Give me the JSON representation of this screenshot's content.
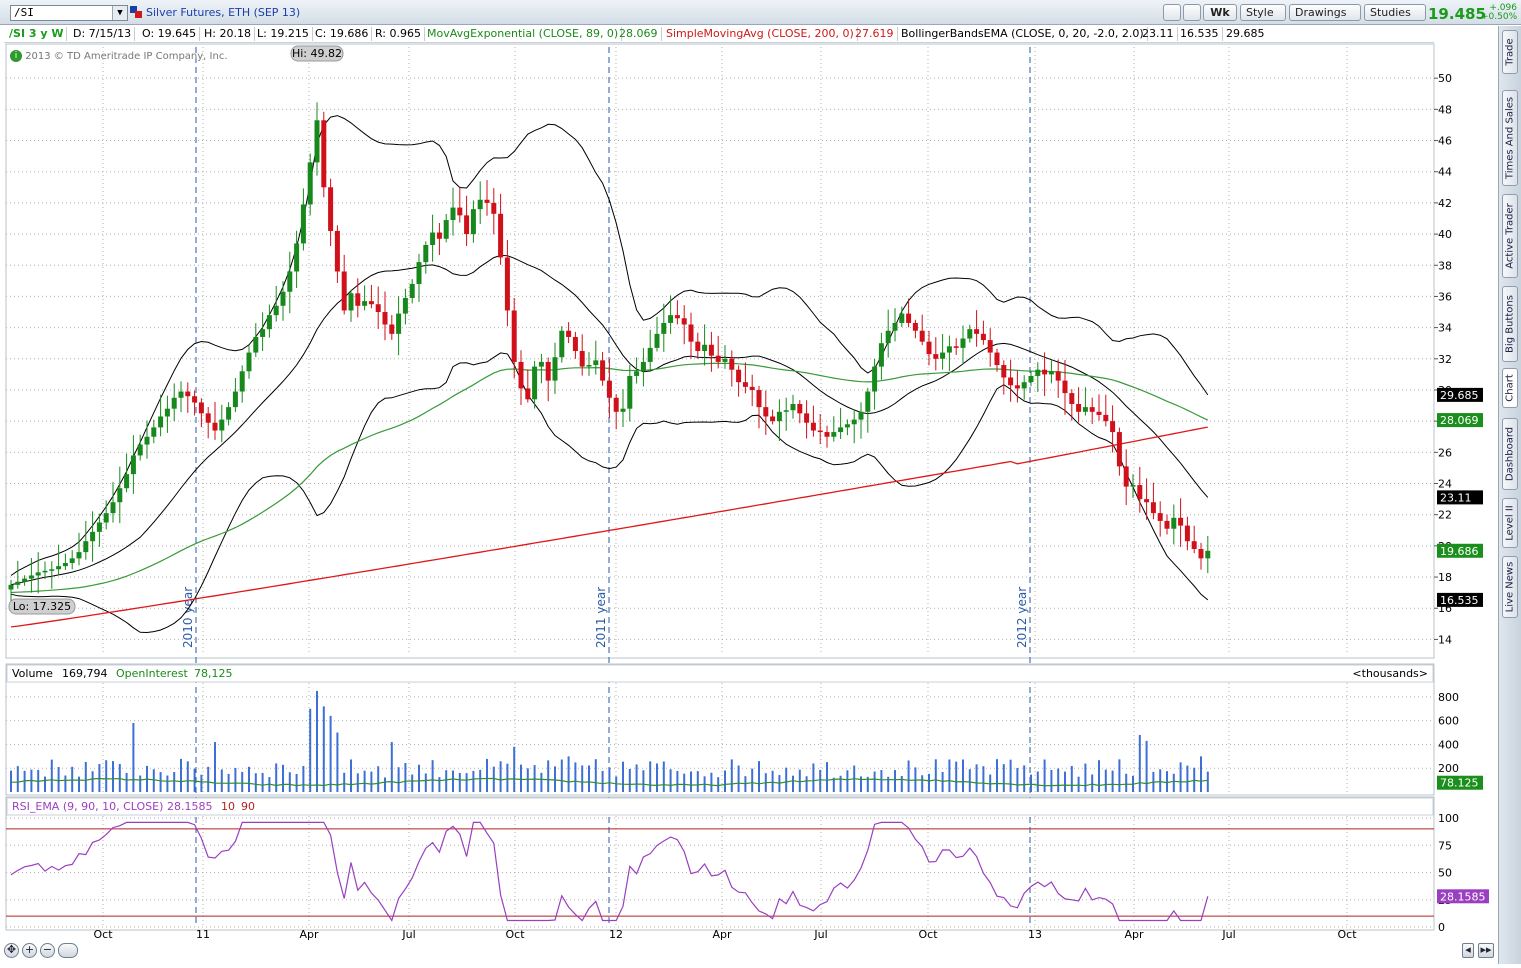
{
  "toolbar": {
    "symbol": "/SI",
    "description": "Silver Futures, ETH (SEP 13)",
    "period_button": "Wk",
    "style_button": "Style",
    "drawings_button": "Drawings",
    "studies_button": "Studies",
    "last_price": "19.485",
    "change_abs": "+.096",
    "change_pct": "+0.50%"
  },
  "info_bar": {
    "chart_id": "/SI 3 y W",
    "date": "D: 7/15/13",
    "open": "O: 19.645",
    "high": "H: 20.18",
    "low": "L: 19.215",
    "close": "C: 19.686",
    "range": "R: 0.965",
    "ema_label": "MovAvgExponential (CLOSE, 89, 0)",
    "ema_value": "28.069",
    "sma_label": "SimpleMovingAvg (CLOSE, 200, 0)",
    "sma_value": "27.619",
    "bb_label": "BollingerBandsEMA (CLOSE, 0, 20, -2.0, 2.0)",
    "bb_mid": "23.11",
    "bb_low": "16.535",
    "bb_up": "29.685"
  },
  "copyright": "2013 © TD Ameritrade IP Company, Inc.",
  "right_tabs": [
    "Trade",
    "Times And Sales",
    "Active Trader",
    "Big Buttons",
    "Chart",
    "Dashboard",
    "Level II",
    "Live News"
  ],
  "colors": {
    "up": "#17891c",
    "down": "#d0101a",
    "ema": "#3a9a3a",
    "sma": "#e01818",
    "bands": "#000000",
    "volume": "#3d6fd6",
    "open_interest": "#2f8f2f",
    "rsi": "#9a3fc0",
    "rsi_levels": "#b22222",
    "year_line": "#2a5aa8"
  },
  "chart_data": [
    {
      "type": "candlestick",
      "panel": "price",
      "title": "/SI 3 y W",
      "ylim": [
        13,
        52
      ],
      "y_ticks": [
        14,
        16,
        18,
        20,
        22,
        24,
        26,
        28,
        30,
        32,
        34,
        36,
        38,
        40,
        42,
        44,
        46,
        48,
        50
      ],
      "x_labels": [
        "Oct",
        "11",
        "Apr",
        "Jul",
        "Oct",
        "12",
        "Apr",
        "Jul",
        "Oct",
        "13",
        "Apr",
        "Jul",
        "Oct"
      ],
      "year_markers": [
        "2010 year",
        "2011 year",
        "2012 year"
      ],
      "annotations": {
        "high": "Hi: 49.82",
        "low": "Lo: 17.325"
      },
      "value_badges": [
        "29.685",
        "28.069",
        "23.11",
        "19.686",
        "16.535"
      ],
      "closes": [
        17.5,
        17.7,
        17.9,
        18.1,
        18.3,
        18.4,
        18.5,
        18.7,
        18.9,
        19.2,
        19.6,
        20.3,
        20.9,
        21.5,
        22.1,
        22.8,
        23.7,
        24.6,
        25.8,
        26.5,
        27.0,
        27.6,
        28.3,
        28.8,
        29.5,
        29.9,
        29.6,
        29.2,
        28.5,
        27.9,
        27.4,
        28.1,
        28.9,
        29.9,
        31.2,
        32.4,
        33.4,
        33.9,
        34.8,
        35.4,
        36.3,
        37.6,
        39.4,
        41.9,
        44.6,
        47.3,
        43.0,
        40.2,
        37.6,
        35.1,
        36.2,
        35.4,
        35.7,
        35.5,
        35.0,
        34.2,
        33.6,
        34.9,
        35.9,
        36.8,
        38.2,
        39.3,
        40.1,
        39.7,
        40.9,
        41.7,
        41.2,
        40.0,
        41.6,
        42.2,
        42.0,
        41.3,
        38.5,
        35.1,
        31.8,
        30.1,
        29.4,
        31.5,
        31.8,
        30.6,
        32.1,
        33.8,
        33.4,
        32.5,
        31.5,
        31.6,
        31.9,
        30.6,
        29.5,
        28.6,
        28.8,
        30.9,
        31.2,
        31.8,
        32.7,
        33.6,
        34.3,
        34.8,
        34.6,
        34.2,
        33.1,
        32.5,
        32.9,
        32.2,
        31.8,
        32.0,
        31.3,
        30.5,
        30.2,
        30.0,
        28.9,
        28.3,
        28.0,
        28.6,
        28.7,
        29.1,
        28.5,
        27.9,
        27.4,
        27.3,
        27.0,
        27.3,
        27.6,
        27.8,
        28.1,
        28.6,
        29.9,
        31.5,
        33.0,
        33.8,
        34.3,
        34.9,
        34.3,
        33.8,
        33.1,
        32.3,
        32.0,
        32.4,
        32.8,
        32.7,
        33.3,
        33.9,
        33.6,
        33.2,
        32.4,
        31.6,
        30.8,
        30.3,
        30.1,
        30.5,
        30.9,
        31.3,
        31.0,
        31.2,
        30.6,
        29.8,
        29.1,
        28.6,
        28.9,
        28.6,
        28.4,
        28.0,
        27.3,
        25.1,
        23.8,
        23.9,
        23.0,
        22.8,
        22.1,
        21.6,
        21.1,
        21.8,
        21.3,
        20.3,
        19.8,
        19.2,
        19.686
      ],
      "series": [
        {
          "name": "MovAvgExponential (CLOSE, 89, 0)",
          "last": 28.069
        },
        {
          "name": "SimpleMovingAvg (CLOSE, 200, 0)",
          "last": 27.619
        },
        {
          "name": "BollingerBandsEMA (CLOSE, 0, 20, -2.0, 2.0)",
          "last_upper": 29.685,
          "last_mid": 23.11,
          "last_lower": 16.535
        }
      ]
    },
    {
      "type": "bar",
      "panel": "volume",
      "title": "Volume",
      "title_value": "169,794",
      "oi_label": "OpenInterest",
      "oi_value": "78,125",
      "units": "<thousands>",
      "ylim": [
        0,
        900
      ],
      "y_ticks": [
        200,
        400,
        600,
        800
      ],
      "badge": "78.125"
    },
    {
      "type": "line",
      "panel": "rsi",
      "title": "RSI_EMA (9, 90, 10, CLOSE)",
      "title_value": "28.1585",
      "levels": [
        10,
        90
      ],
      "ylim": [
        0,
        100
      ],
      "y_ticks": [
        0,
        25,
        50,
        75,
        100
      ],
      "badge": "28.1585"
    }
  ]
}
